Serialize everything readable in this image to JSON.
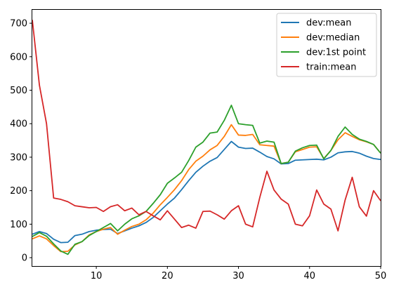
{
  "chart_data": {
    "type": "line",
    "title": "",
    "xlabel": "",
    "ylabel": "",
    "xlim": [
      1,
      50
    ],
    "ylim": [
      -25,
      740
    ],
    "x_ticks": [
      10,
      20,
      30,
      40,
      50
    ],
    "y_ticks": [
      0,
      100,
      200,
      300,
      400,
      500,
      600,
      700
    ],
    "grid": false,
    "legend_position": "top-right",
    "x": [
      1,
      2,
      3,
      4,
      5,
      6,
      7,
      8,
      9,
      10,
      11,
      12,
      13,
      14,
      15,
      16,
      17,
      18,
      19,
      20,
      21,
      22,
      23,
      24,
      25,
      26,
      27,
      28,
      29,
      30,
      31,
      32,
      33,
      34,
      35,
      36,
      37,
      38,
      39,
      40,
      41,
      42,
      43,
      44,
      45,
      46,
      47,
      48,
      49,
      50
    ],
    "series": [
      {
        "name": "dev:mean",
        "color": "#1f77b4",
        "values": [
          70,
          78,
          72,
          55,
          45,
          46,
          66,
          70,
          78,
          82,
          84,
          85,
          72,
          80,
          88,
          95,
          105,
          120,
          140,
          160,
          178,
          203,
          230,
          255,
          273,
          288,
          299,
          323,
          347,
          330,
          326,
          327,
          315,
          302,
          295,
          280,
          281,
          291,
          292,
          293,
          294,
          292,
          300,
          313,
          316,
          317,
          312,
          303,
          296,
          293
        ]
      },
      {
        "name": "dev:median",
        "color": "#ff7f0e",
        "values": [
          56,
          65,
          56,
          36,
          18,
          19,
          38,
          48,
          68,
          78,
          85,
          90,
          70,
          82,
          93,
          100,
          113,
          133,
          158,
          180,
          203,
          230,
          263,
          288,
          303,
          322,
          335,
          362,
          397,
          366,
          365,
          368,
          337,
          335,
          333,
          281,
          285,
          316,
          323,
          330,
          331,
          296,
          320,
          352,
          373,
          362,
          352,
          346,
          338,
          312
        ]
      },
      {
        "name": "dev:1st point",
        "color": "#2ca02c",
        "values": [
          63,
          75,
          64,
          41,
          20,
          10,
          40,
          48,
          66,
          78,
          90,
          102,
          80,
          100,
          116,
          125,
          138,
          162,
          188,
          222,
          238,
          255,
          290,
          330,
          345,
          372,
          375,
          410,
          455,
          400,
          397,
          395,
          342,
          348,
          345,
          281,
          285,
          318,
          328,
          335,
          336,
          295,
          320,
          362,
          390,
          368,
          354,
          347,
          338,
          312
        ]
      },
      {
        "name": "train:mean",
        "color": "#d62728",
        "values": [
          710,
          515,
          400,
          178,
          174,
          167,
          155,
          152,
          149,
          150,
          138,
          152,
          158,
          140,
          148,
          128,
          138,
          125,
          113,
          140,
          115,
          90,
          97,
          88,
          138,
          139,
          128,
          115,
          140,
          155,
          100,
          92,
          180,
          258,
          202,
          175,
          160,
          100,
          95,
          125,
          202,
          160,
          145,
          80,
          172,
          240,
          152,
          124,
          200,
          170
        ]
      }
    ]
  }
}
